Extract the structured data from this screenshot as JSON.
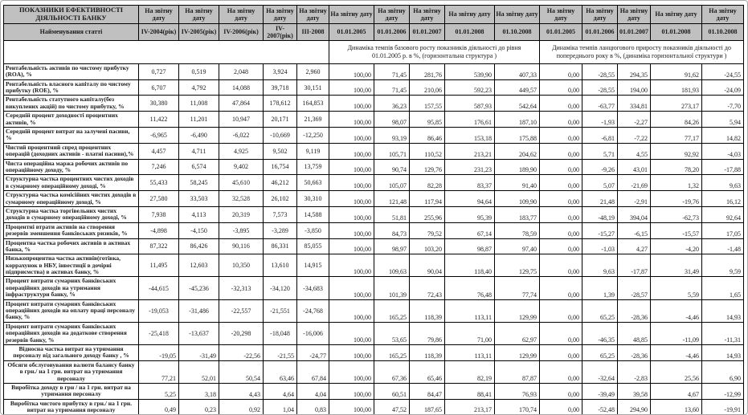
{
  "colors": {
    "header_bg": "#c0c0c0",
    "border": "#000000",
    "page_bg": "#ffffff"
  },
  "header": {
    "title": "ПОКАЗНИКИ ЕФЕКТИВНОСТІ ДІЯЛЬНОСТІ  БАНКУ",
    "row_name_label": "Найменування статті",
    "report_date_label": "На звітну дату",
    "period_cols": [
      "IV-2004(рік)",
      "IV-2005(рік)",
      "IV-2006(рік)",
      "IV-2007(рік)",
      "III-2008"
    ],
    "base_dates": [
      "01.01.2005",
      "01.01.2006",
      "01.01.2007",
      "01.01.2008",
      "01.10.2008"
    ],
    "chain_dates": [
      "01.01.2005",
      "01.01.2006",
      "01.01.2007",
      "01.01.2008",
      "01.10.2008"
    ],
    "base_group_label": "Динаміка темпів базового росту показників діяльності до рівня 01.01.2005 р. в %, (горизонтальна структура )",
    "chain_group_label": "Динаміка темпів ланцюгового приросту показників діяльності до попереднього року в %, (динаміка горизонтальної структури )"
  },
  "rows": [
    {
      "label": "Рентабельність активів по чистому прибутку (ROA), %",
      "values": [
        "0,727",
        "0,519",
        "2,048",
        "3,924",
        "2,960"
      ],
      "base": [
        "100,00",
        "71,45",
        "281,76",
        "539,90",
        "407,33"
      ],
      "chain": [
        "0,00",
        "-28,55",
        "294,35",
        "91,62",
        "-24,55"
      ],
      "style": "left"
    },
    {
      "label": "Рентабельність власного капіталу по чистому прибутку (ROE), %",
      "values": [
        "6,707",
        "4,792",
        "14,088",
        "39,718",
        "30,151"
      ],
      "base": [
        "100,00",
        "71,45",
        "210,06",
        "592,23",
        "449,57"
      ],
      "chain": [
        "0,00",
        "-28,55",
        "194,00",
        "181,93",
        "-24,09"
      ],
      "style": "left"
    },
    {
      "label": "Рентабельність статутного капіталу(без викуплених акцій) по чистому прибутку, %",
      "values": [
        "30,380",
        "11,008",
        "47,864",
        "178,612",
        "164,853"
      ],
      "base": [
        "100,00",
        "36,23",
        "157,55",
        "587,93",
        "542,64"
      ],
      "chain": [
        "0,00",
        "-63,77",
        "334,81",
        "273,17",
        "-7,70"
      ],
      "style": "left"
    },
    {
      "label": "Середній процент доходності процентних активів, %",
      "values": [
        "11,422",
        "11,201",
        "10,947",
        "20,171",
        "21,369"
      ],
      "base": [
        "100,00",
        "98,07",
        "95,85",
        "176,61",
        "187,10"
      ],
      "chain": [
        "0,00",
        "-1,93",
        "-2,27",
        "84,26",
        "5,94"
      ],
      "style": "left"
    },
    {
      "label": "Середній процент витрат на залучені пасиви, %",
      "values": [
        "-6,965",
        "-6,490",
        "-6,022",
        "-10,669",
        "-12,250"
      ],
      "base": [
        "100,00",
        "93,19",
        "86,46",
        "153,18",
        "175,88"
      ],
      "chain": [
        "0,00",
        "-6,81",
        "-7,22",
        "77,17",
        "14,82"
      ],
      "style": "left"
    },
    {
      "label": "Чистий процентний спред процентних операцій (доходних активів - платні пасиви),%",
      "values": [
        "4,457",
        "4,711",
        "4,925",
        "9,502",
        "9,119"
      ],
      "base": [
        "100,00",
        "105,71",
        "110,52",
        "213,21",
        "204,62"
      ],
      "chain": [
        "0,00",
        "5,71",
        "4,55",
        "92,92",
        "-4,03"
      ],
      "style": "left"
    },
    {
      "label": "Чиста операційна маржа робочих активів по операційному доходу, %",
      "values": [
        "7,246",
        "6,574",
        "9,402",
        "16,754",
        "13,759"
      ],
      "base": [
        "100,00",
        "90,74",
        "129,76",
        "231,23",
        "189,90"
      ],
      "chain": [
        "0,00",
        "-9,26",
        "43,01",
        "78,20",
        "-17,88"
      ],
      "style": "left"
    },
    {
      "label": "Структурна частка процентних чистих доходів в сумарному операційному доході, %",
      "values": [
        "55,433",
        "58,245",
        "45,610",
        "46,212",
        "50,663"
      ],
      "base": [
        "100,00",
        "105,07",
        "82,28",
        "83,37",
        "91,40"
      ],
      "chain": [
        "0,00",
        "5,07",
        "-21,69",
        "1,32",
        "9,63"
      ],
      "style": "left"
    },
    {
      "label": "Структурна частка комісійних чистих доходів в сумарному операційному доході, %",
      "values": [
        "27,580",
        "33,503",
        "32,528",
        "26,102",
        "30,310"
      ],
      "base": [
        "100,00",
        "121,48",
        "117,94",
        "94,64",
        "109,90"
      ],
      "chain": [
        "0,00",
        "21,48",
        "-2,91",
        "-19,76",
        "16,12"
      ],
      "style": "left"
    },
    {
      "label": "Структурна частка торгівельних чистих доходів в сумарному операційному доході, %",
      "values": [
        "7,938",
        "4,113",
        "20,319",
        "7,573",
        "14,588"
      ],
      "base": [
        "100,00",
        "51,81",
        "255,96",
        "95,39",
        "183,77"
      ],
      "chain": [
        "0,00",
        "-48,19",
        "394,04",
        "-62,73",
        "92,64"
      ],
      "style": "left"
    },
    {
      "label": "Процентні втрати активів на створення резервів зменшення банківських ризиків, %",
      "values": [
        "-4,898",
        "-4,150",
        "-3,895",
        "-3,289",
        "-3,850"
      ],
      "base": [
        "100,00",
        "84,73",
        "79,52",
        "67,14",
        "78,59"
      ],
      "chain": [
        "0,00",
        "-15,27",
        "-6,15",
        "-15,57",
        "17,05"
      ],
      "style": "left"
    },
    {
      "label": "Процентна частка робочих активів в активах банка, %",
      "values": [
        "87,322",
        "86,426",
        "90,116",
        "86,331",
        "85,055"
      ],
      "base": [
        "100,00",
        "98,97",
        "103,20",
        "98,87",
        "97,40"
      ],
      "chain": [
        "0,00",
        "-1,03",
        "4,27",
        "-4,20",
        "-1,48"
      ],
      "style": "left"
    },
    {
      "label": "Низькопроцентна частка активів(готівка, коррахунок в НБУ, інвестиції в дочірні підприємства) в  активах банку, %",
      "values": [
        "11,495",
        "12,603",
        "10,350",
        "13,610",
        "14,915"
      ],
      "base": [
        "100,00",
        "109,63",
        "90,04",
        "118,40",
        "129,75"
      ],
      "chain": [
        "0,00",
        "9,63",
        "-17,87",
        "31,49",
        "9,59"
      ],
      "style": "left"
    },
    {
      "label": "Процент витрати сумарних банківських операційних доходів на утримання інфраструктури банку, %",
      "values": [
        "-44,615",
        "-45,236",
        "-32,313",
        "-34,120",
        "-34,683"
      ],
      "base": [
        "100,00",
        "101,39",
        "72,43",
        "76,48",
        "77,74"
      ],
      "chain": [
        "0,00",
        "1,39",
        "-28,57",
        "5,59",
        "1,65"
      ],
      "style": "left"
    },
    {
      "label": "Процент витрати сумарних банківських операційних доходів на оплату праці персоналу банку, %",
      "values": [
        "-19,053",
        "-31,486",
        "-22,557",
        "-21,551",
        "-24,768"
      ],
      "base": [
        "100,00",
        "165,25",
        "118,39",
        "113,11",
        "129,99"
      ],
      "chain": [
        "0,00",
        "65,25",
        "-28,36",
        "-4,46",
        "14,93"
      ],
      "style": "left"
    },
    {
      "label": "Процент витрати сумарних банківських операційних доходів на додаткове створення резервів банку, %",
      "values": [
        "-25,418",
        "-13,637",
        "-20,298",
        "-18,048",
        "-16,006"
      ],
      "base": [
        "100,00",
        "53,65",
        "79,86",
        "71,00",
        "62,97"
      ],
      "chain": [
        "0,00",
        "-46,35",
        "48,85",
        "-11,09",
        "-11,31"
      ],
      "style": "left"
    },
    {
      "label": "Відносна частка витрат на утримання персоналу від загального доходу банку , %",
      "values": [
        "-19,05",
        "-31,49",
        "-22,56",
        "-21,55",
        "-24,77"
      ],
      "base": [
        "100,00",
        "165,25",
        "118,39",
        "113,11",
        "129,99"
      ],
      "chain": [
        "0,00",
        "65,25",
        "-28,36",
        "-4,46",
        "14,93"
      ],
      "style": "center"
    },
    {
      "label": "Обсяги обслуговування валюти балансу банку в грн./ на 1 грн. витрат на утримання персоналу",
      "values": [
        "77,21",
        "52,01",
        "50,54",
        "63,46",
        "67,84"
      ],
      "base": [
        "100,00",
        "67,36",
        "65,46",
        "82,19",
        "87,87"
      ],
      "chain": [
        "0,00",
        "-32,64",
        "-2,83",
        "25,56",
        "6,90"
      ],
      "style": "center"
    },
    {
      "label": "Виробітка доходу в грн / на 1 грн. витрат на утримання персоналу",
      "values": [
        "5,25",
        "3,18",
        "4,43",
        "4,64",
        "4,04"
      ],
      "base": [
        "100,00",
        "60,51",
        "84,47",
        "88,41",
        "76,93"
      ],
      "chain": [
        "0,00",
        "-39,49",
        "39,58",
        "4,67",
        "-12,99"
      ],
      "style": "center"
    },
    {
      "label": "Виробітка чистого прибутку в грн./ на 1 грн. витрат на утримання персоналу",
      "values": [
        "0,49",
        "0,23",
        "0,92",
        "1,04",
        "0,83"
      ],
      "base": [
        "100,00",
        "47,52",
        "187,65",
        "213,17",
        "170,74"
      ],
      "chain": [
        "0,00",
        "-52,48",
        "294,90",
        "13,60",
        "-19,91"
      ],
      "style": "center"
    }
  ]
}
